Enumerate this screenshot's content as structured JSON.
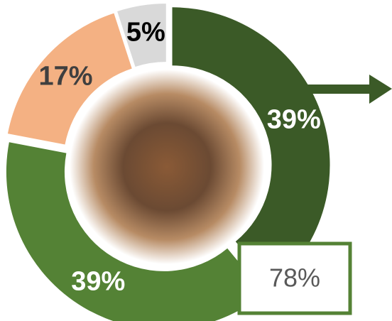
{
  "chart_data": {
    "type": "pie",
    "categories": [
      null,
      null,
      null,
      null
    ],
    "values": [
      39,
      39,
      17,
      5
    ],
    "value_labels": [
      "39%",
      "39%",
      "17%",
      "5%"
    ],
    "colors": [
      "#3b5a27",
      "#548235",
      "#f4b183",
      "#d9d9d9"
    ],
    "label_colors": [
      "#ffffff",
      "#ffffff",
      "#3f3f3f",
      "#000000"
    ],
    "annotation": "78%"
  }
}
